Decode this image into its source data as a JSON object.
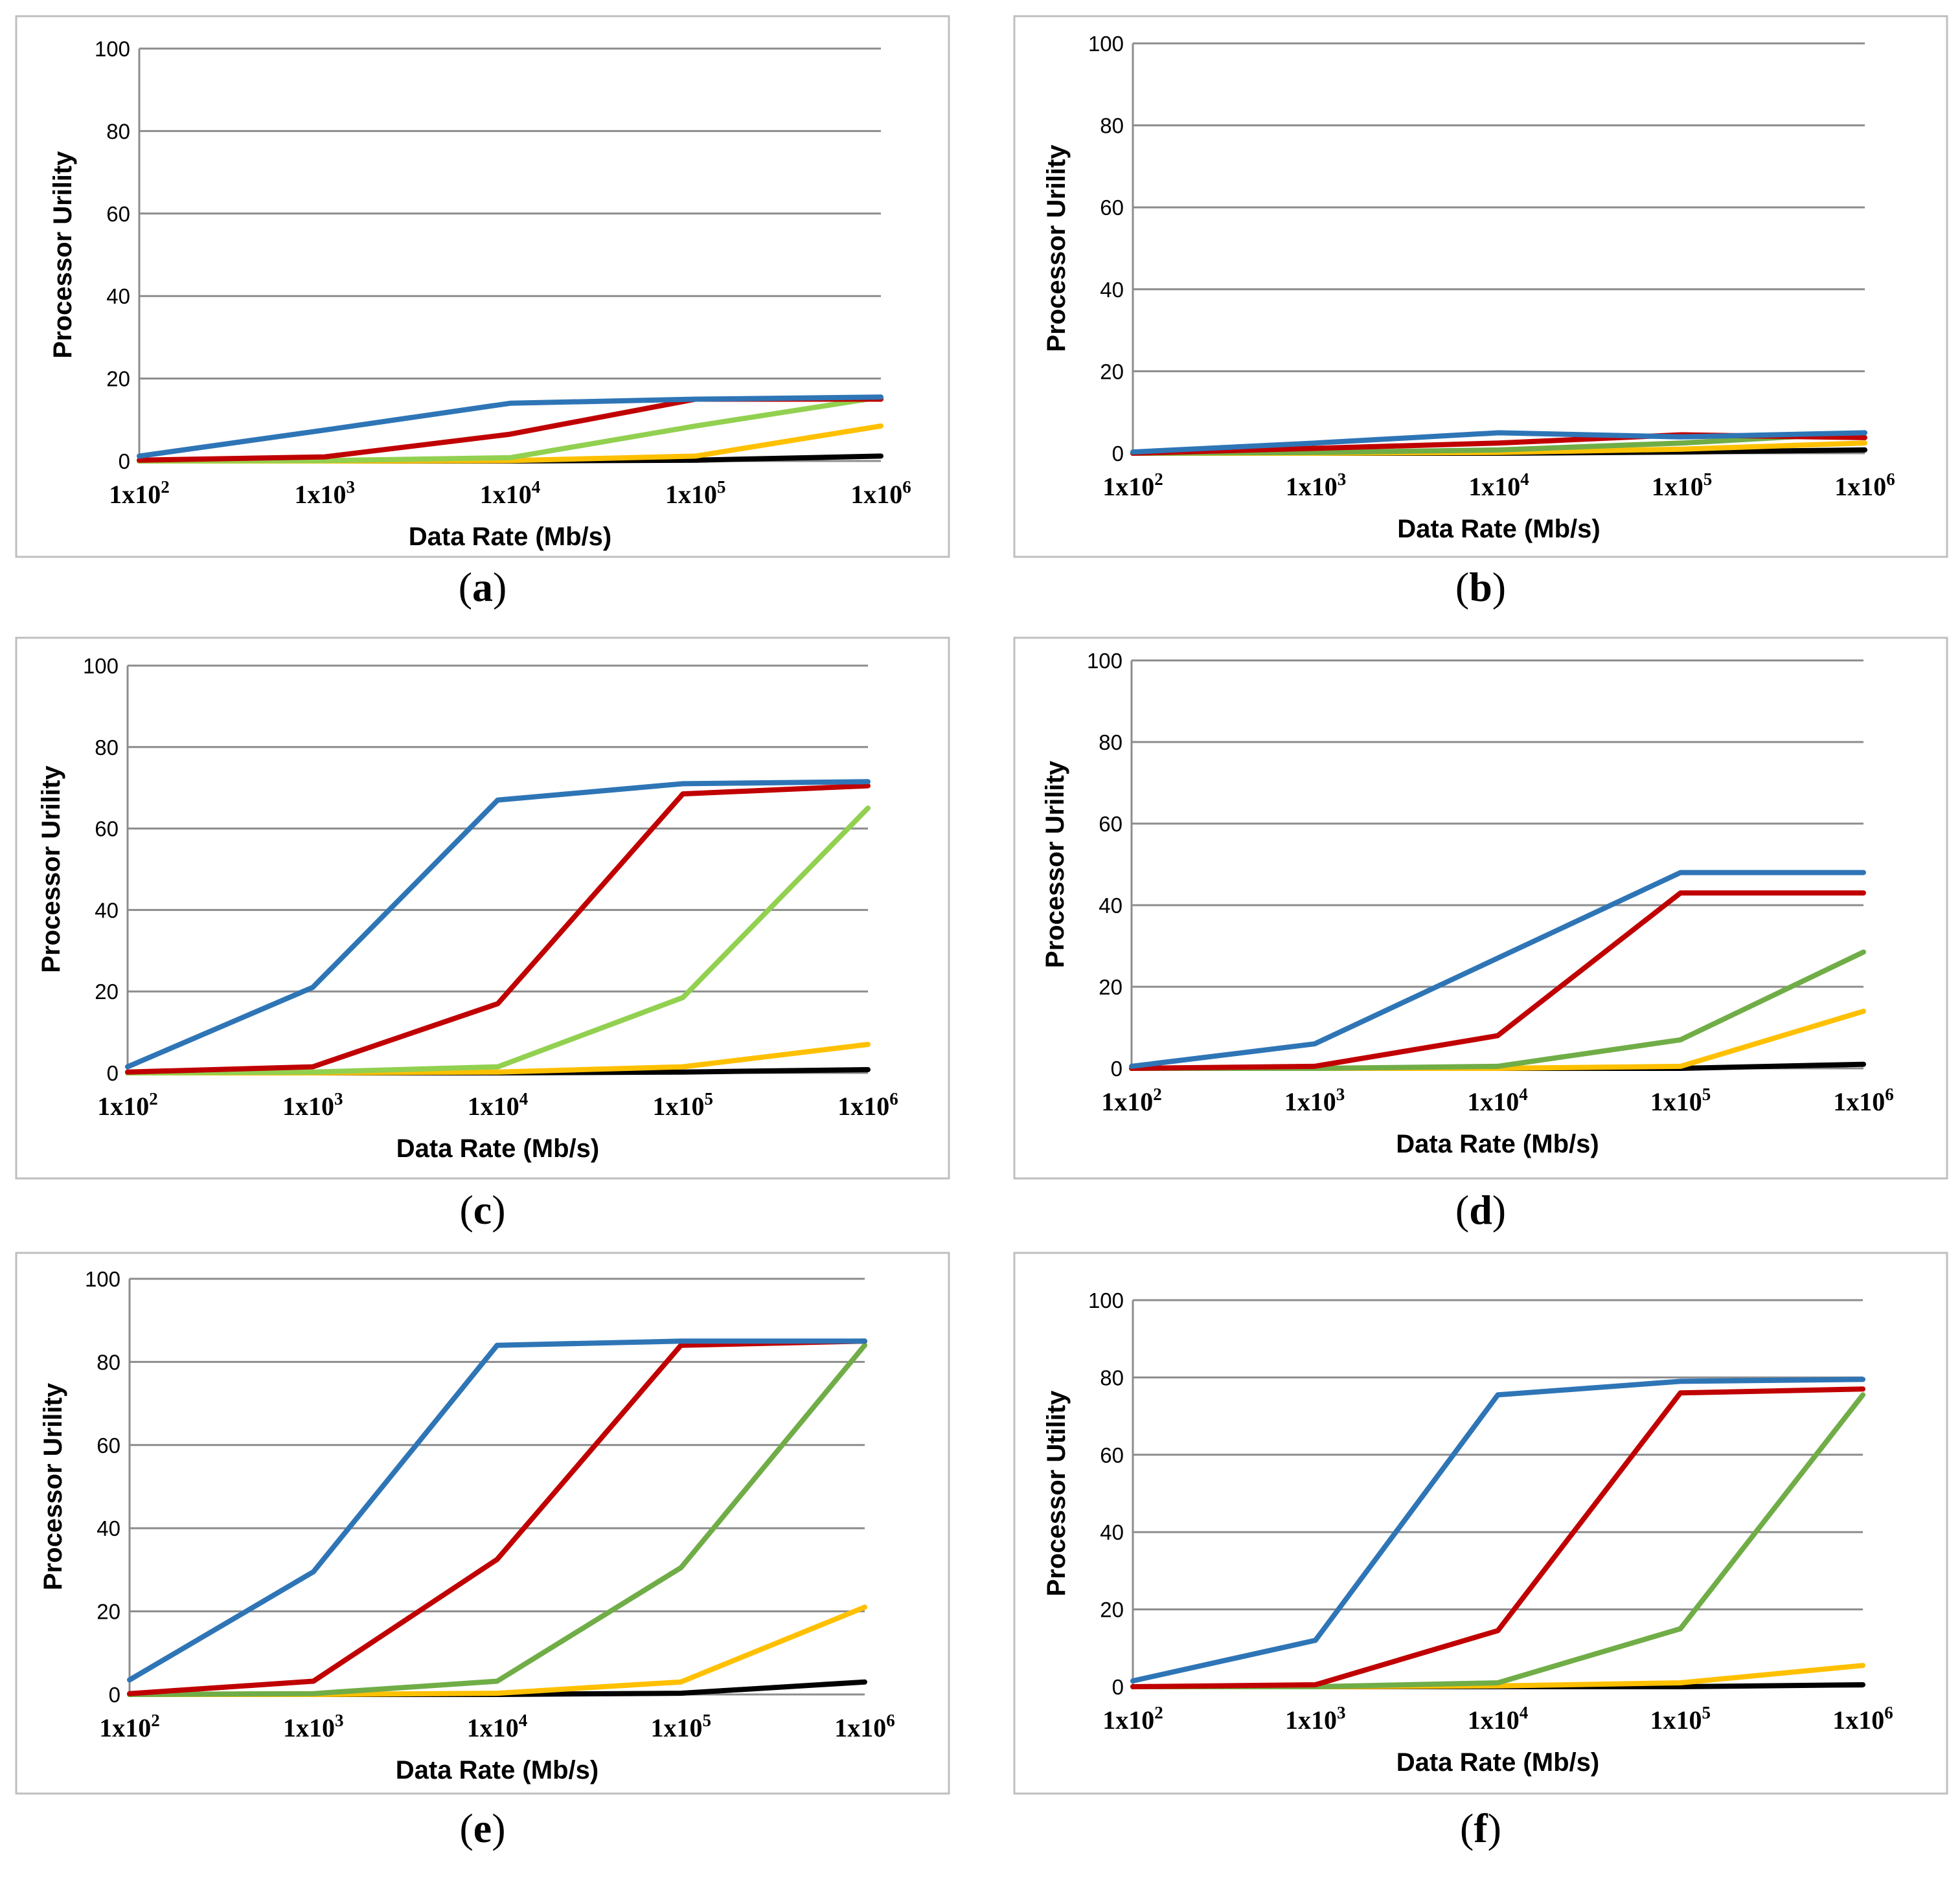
{
  "figure": {
    "x_tick_labels": [
      {
        "base": "1x10",
        "exp": "2"
      },
      {
        "base": "1x10",
        "exp": "3"
      },
      {
        "base": "1x10",
        "exp": "4"
      },
      {
        "base": "1x10",
        "exp": "5"
      },
      {
        "base": "1x10",
        "exp": "6"
      }
    ],
    "y_ticks": [
      "0",
      "20",
      "40",
      "60",
      "80",
      "100"
    ],
    "xlabel": "Data Rate (Mb/s)",
    "ylabel": "Processor Urility"
  },
  "colors": {
    "blue": "#2E75B6",
    "red": "#C00000",
    "lightgreen": "#92D050",
    "green": "#70AD47",
    "yellow": "#FFC000",
    "black": "#000000",
    "grid": "#8C8C8C",
    "frame": "#BFBFBF"
  },
  "chart_data": [
    {
      "type": "line",
      "caption": "a",
      "categories": [
        "1x10^2",
        "1x10^3",
        "1x10^4",
        "1x10^5",
        "1x10^6"
      ],
      "xlabel": "Data Rate (Mb/s)",
      "ylabel": "Processor Urility",
      "ylim": [
        0,
        100
      ],
      "grid": true,
      "series": [
        {
          "name": "blue",
          "color": "#2E75B6",
          "values": [
            1.2,
            7.5,
            14,
            15,
            15.5
          ]
        },
        {
          "name": "red",
          "color": "#C00000",
          "values": [
            0.2,
            1,
            6.5,
            15,
            15
          ]
        },
        {
          "name": "green",
          "color": "#92D050",
          "values": [
            0,
            0.1,
            0.8,
            8.5,
            15.5
          ]
        },
        {
          "name": "yellow",
          "color": "#FFC000",
          "values": [
            0,
            0,
            0.1,
            1.2,
            8.5
          ]
        },
        {
          "name": "black",
          "color": "#000000",
          "values": [
            0,
            0,
            0,
            0.2,
            1.2
          ]
        }
      ]
    },
    {
      "type": "line",
      "caption": "b",
      "categories": [
        "1x10^2",
        "1x10^3",
        "1x10^4",
        "1x10^5",
        "1x10^6"
      ],
      "xlabel": "Data Rate (Mb/s)",
      "ylabel": "Processor Urility",
      "ylim": [
        0,
        100
      ],
      "grid": true,
      "series": [
        {
          "name": "blue",
          "color": "#2E75B6",
          "values": [
            0.3,
            2.5,
            5,
            4,
            5
          ]
        },
        {
          "name": "red",
          "color": "#C00000",
          "values": [
            0,
            1.2,
            2.5,
            4.5,
            3.8
          ]
        },
        {
          "name": "green",
          "color": "#70AD47",
          "values": [
            0,
            0.2,
            0.8,
            2.5,
            5
          ]
        },
        {
          "name": "yellow",
          "color": "#FFC000",
          "values": [
            0,
            0,
            0.2,
            1,
            2.5
          ]
        },
        {
          "name": "black",
          "color": "#000000",
          "values": [
            0,
            0,
            0,
            0.3,
            0.8
          ]
        }
      ]
    },
    {
      "type": "line",
      "caption": "c",
      "categories": [
        "1x10^2",
        "1x10^3",
        "1x10^4",
        "1x10^5",
        "1x10^6"
      ],
      "xlabel": "Data Rate (Mb/s)",
      "ylabel": "Processor Urility",
      "ylim": [
        0,
        100
      ],
      "grid": true,
      "series": [
        {
          "name": "blue",
          "color": "#2E75B6",
          "values": [
            1.5,
            21,
            67,
            71,
            71.5
          ]
        },
        {
          "name": "red",
          "color": "#C00000",
          "values": [
            0.2,
            1.5,
            17,
            68.5,
            70.5
          ]
        },
        {
          "name": "green",
          "color": "#92D050",
          "values": [
            0,
            0.2,
            1.5,
            18.5,
            65
          ]
        },
        {
          "name": "yellow",
          "color": "#FFC000",
          "values": [
            0,
            0,
            0.2,
            1.5,
            7
          ]
        },
        {
          "name": "black",
          "color": "#000000",
          "values": [
            0,
            0,
            0,
            0.2,
            0.8
          ]
        }
      ]
    },
    {
      "type": "line",
      "caption": "d",
      "categories": [
        "1x10^2",
        "1x10^3",
        "1x10^4",
        "1x10^5",
        "1x10^6"
      ],
      "xlabel": "Data Rate (Mb/s)",
      "ylabel": "Processor Urility",
      "ylim": [
        0,
        100
      ],
      "grid": true,
      "series": [
        {
          "name": "blue",
          "color": "#2E75B6",
          "values": [
            0.5,
            6,
            27,
            48,
            48
          ]
        },
        {
          "name": "red",
          "color": "#C00000",
          "values": [
            0,
            0.5,
            8,
            43,
            43
          ]
        },
        {
          "name": "green",
          "color": "#70AD47",
          "values": [
            0,
            0,
            0.5,
            7,
            28.5
          ]
        },
        {
          "name": "yellow",
          "color": "#FFC000",
          "values": [
            0,
            0,
            0,
            0.5,
            14
          ]
        },
        {
          "name": "black",
          "color": "#000000",
          "values": [
            0,
            0,
            0,
            0,
            1
          ]
        }
      ]
    },
    {
      "type": "line",
      "caption": "e",
      "categories": [
        "1x10^2",
        "1x10^3",
        "1x10^4",
        "1x10^5",
        "1x10^6"
      ],
      "xlabel": "Data Rate (Mb/s)",
      "ylabel": "Processor Urility",
      "ylim": [
        0,
        100
      ],
      "grid": true,
      "series": [
        {
          "name": "blue",
          "color": "#2E75B6",
          "values": [
            3.5,
            29.5,
            84,
            85,
            85
          ]
        },
        {
          "name": "red",
          "color": "#C00000",
          "values": [
            0.2,
            3.2,
            32.5,
            84,
            85
          ]
        },
        {
          "name": "green",
          "color": "#70AD47",
          "values": [
            0,
            0.2,
            3.2,
            30.5,
            84
          ]
        },
        {
          "name": "yellow",
          "color": "#FFC000",
          "values": [
            0,
            0,
            0.3,
            3,
            21
          ]
        },
        {
          "name": "black",
          "color": "#000000",
          "values": [
            0,
            0,
            0,
            0.3,
            3
          ]
        }
      ]
    },
    {
      "type": "line",
      "caption": "f",
      "categories": [
        "1x10^2",
        "1x10^3",
        "1x10^4",
        "1x10^5",
        "1x10^6"
      ],
      "xlabel": "Data Rate (Mb/s)",
      "ylabel": "Processor Utility",
      "ylim": [
        0,
        100
      ],
      "grid": true,
      "series": [
        {
          "name": "blue",
          "color": "#2E75B6",
          "values": [
            1.5,
            12,
            75.5,
            79,
            79.5
          ]
        },
        {
          "name": "red",
          "color": "#C00000",
          "values": [
            0,
            0.5,
            14.5,
            76,
            77
          ]
        },
        {
          "name": "green",
          "color": "#70AD47",
          "values": [
            0,
            0,
            1,
            15,
            75.5
          ]
        },
        {
          "name": "yellow",
          "color": "#FFC000",
          "values": [
            0,
            0,
            0.2,
            1,
            5.5
          ]
        },
        {
          "name": "black",
          "color": "#000000",
          "values": [
            0,
            0,
            0,
            0,
            0.5
          ]
        }
      ]
    }
  ]
}
